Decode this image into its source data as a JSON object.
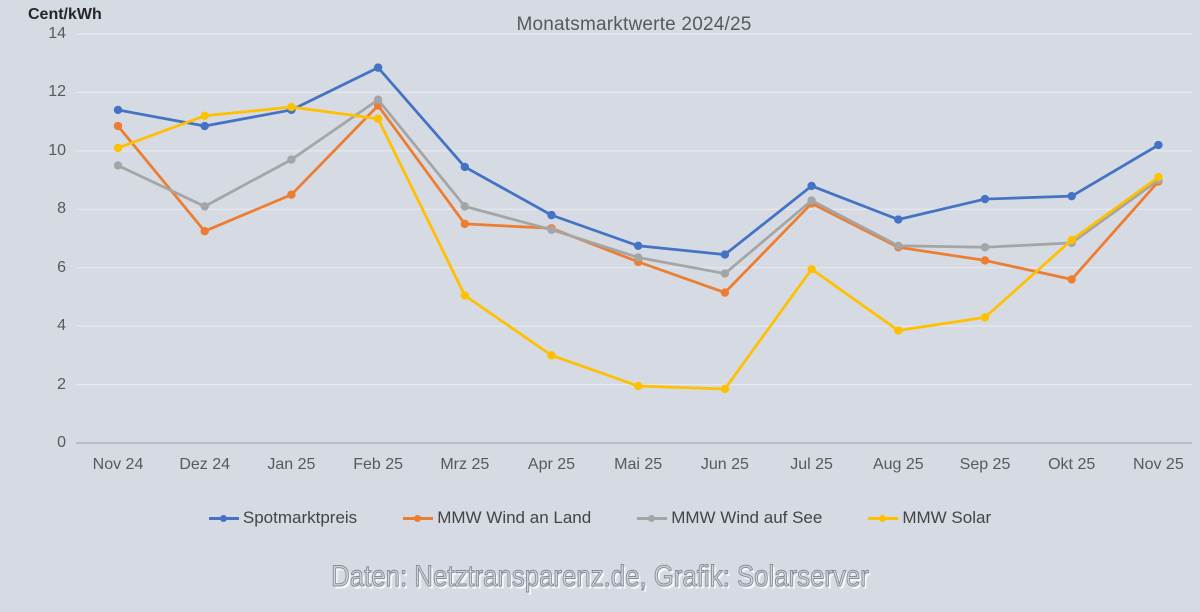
{
  "caption": "Daten: Netztransparenz.de, Grafik: Solarserver",
  "colors": {
    "background": "#D5DAE3",
    "gridline": "rgba(255,255,255,0.5)",
    "axis_line": "#A9AFBB",
    "tick_text": "#595959",
    "title_text": "#595959"
  },
  "chart_data": {
    "type": "line",
    "title": "Monatsmarktwerte 2024/25",
    "ylabel": "Cent/kWh",
    "xlabel": "",
    "ylim": [
      0,
      14
    ],
    "ytick_step": 2,
    "grid": true,
    "legend_position": "bottom",
    "categories": [
      "Nov 24",
      "Dez 24",
      "Jan 25",
      "Feb 25",
      "Mrz 25",
      "Apr 25",
      "Mai 25",
      "Jun 25",
      "Jul 25",
      "Aug 25",
      "Sep 25",
      "Okt 25",
      "Nov 25"
    ],
    "series": [
      {
        "name": "Spotmarktpreis",
        "color": "#4472C4",
        "values": [
          11.4,
          10.85,
          11.4,
          12.85,
          9.45,
          7.8,
          6.75,
          6.45,
          8.8,
          7.65,
          8.35,
          8.45,
          10.2
        ]
      },
      {
        "name": "MMW Wind an Land",
        "color": "#ED7D31",
        "values": [
          10.85,
          7.25,
          8.5,
          11.55,
          7.5,
          7.35,
          6.2,
          5.15,
          8.2,
          6.7,
          6.25,
          5.6,
          8.95
        ]
      },
      {
        "name": "MMW Wind auf See",
        "color": "#A5A5A5",
        "values": [
          9.5,
          8.1,
          9.7,
          11.75,
          8.1,
          7.3,
          6.35,
          5.8,
          8.3,
          6.75,
          6.7,
          6.85,
          9.0
        ]
      },
      {
        "name": "MMW Solar",
        "color": "#FFC000",
        "values": [
          10.1,
          11.2,
          11.5,
          11.1,
          5.05,
          3.0,
          1.95,
          1.85,
          5.95,
          3.85,
          4.3,
          6.95,
          9.1
        ]
      }
    ]
  }
}
